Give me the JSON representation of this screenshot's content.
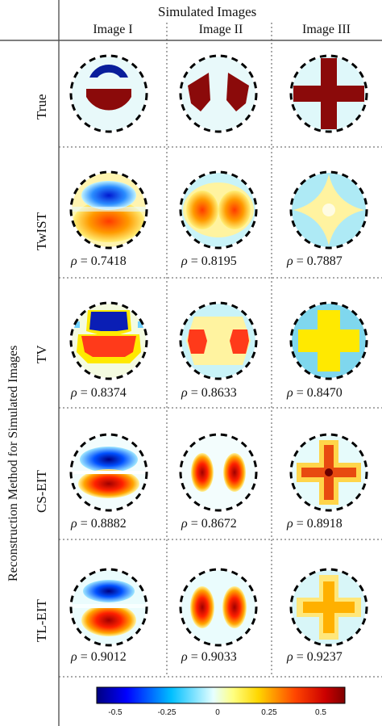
{
  "header": {
    "title": "Simulated Images",
    "columns": [
      "Image I",
      "Image II",
      "Image III"
    ]
  },
  "side_label": "Reconstruction Method for Simulated Images",
  "rows": [
    {
      "label": "True",
      "rho": [
        "",
        "",
        ""
      ]
    },
    {
      "label": "TwIST",
      "rho": [
        "= 0.7418",
        "= 0.8195",
        "= 0.7887"
      ]
    },
    {
      "label": "TV",
      "rho": [
        "= 0.8374",
        "= 0.8633",
        "= 0.8470"
      ]
    },
    {
      "label": "CS-EIT",
      "rho": [
        "= 0.8882",
        "= 0.8672",
        "= 0.8918"
      ]
    },
    {
      "label": "TL-EIT",
      "rho": [
        "= 0.9012",
        "= 0.9033",
        "= 0.9237"
      ]
    }
  ],
  "rho_symbol": "ρ",
  "colorbar": {
    "ticks": [
      "-0.5",
      "-0.25",
      "0",
      "0.25",
      "0.5"
    ],
    "range": [
      -0.6,
      0.6
    ],
    "colormap": [
      "#00007f",
      "#0000ff",
      "#00bfff",
      "#e0ffff",
      "#ffff80",
      "#ffd700",
      "#ff4500",
      "#cc0000",
      "#7f0000"
    ]
  },
  "colors": {
    "background_disk": "#ddf6f8",
    "dark_red": "#8b0a0a",
    "dark_blue": "#0a1e9b",
    "yellow": "#ffe900"
  }
}
